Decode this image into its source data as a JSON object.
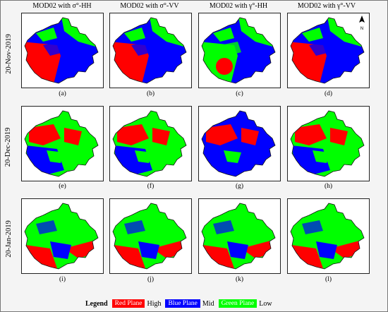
{
  "columns": [
    "MOD02 with σ°-HH",
    "MOD02 with σ°-VV",
    "MOD02 with γ°-HH",
    "MOD02 with γ°-VV"
  ],
  "rows": [
    "20-Nov-2019",
    "20-Dec-2019",
    "20-Jan-2019"
  ],
  "panel_labels": [
    "(a)",
    "(b)",
    "(c)",
    "(d)",
    "(e)",
    "(f)",
    "(g)",
    "(h)",
    "(i)",
    "(j)",
    "(k)",
    "(l)"
  ],
  "north_label": "N",
  "legend": {
    "title": "Legend",
    "items": [
      {
        "label": "Red Plane",
        "level": "High",
        "color": "#ff0000",
        "text_color": "#ffffff"
      },
      {
        "label": "Blue Plane",
        "level": "Mid",
        "color": "#0000ff",
        "text_color": "#ffffff"
      },
      {
        "label": "Green Plane",
        "level": "Low",
        "color": "#00ff00",
        "text_color": "#ffffff"
      }
    ]
  },
  "colors": {
    "red": "#ff0000",
    "blue": "#0000ff",
    "green": "#00ff00"
  },
  "panel_dominance": [
    [
      "red",
      "red",
      "green",
      "red"
    ],
    [
      "green",
      "green",
      "blue",
      "green"
    ],
    [
      "green",
      "green",
      "green",
      "green"
    ]
  ]
}
